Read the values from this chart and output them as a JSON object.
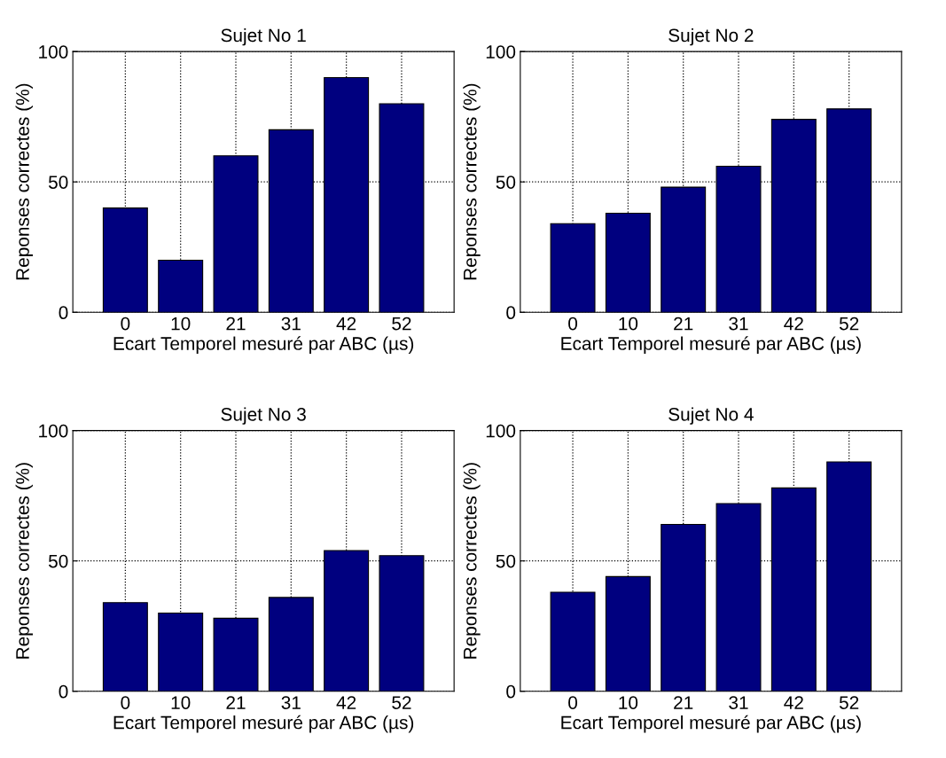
{
  "chart_data": [
    {
      "type": "bar",
      "title": "Sujet No 1",
      "xlabel": "Ecart Temporel mesuré par ABC (µs)",
      "ylabel": "Reponses correctes (%)",
      "categories": [
        "0",
        "10",
        "21",
        "31",
        "42",
        "52"
      ],
      "values": [
        40,
        20,
        60,
        70,
        90,
        80
      ],
      "color": "#00007f",
      "ylim": [
        0,
        100
      ],
      "yticks": [
        0,
        50,
        100
      ],
      "grid": true
    },
    {
      "type": "bar",
      "title": "Sujet No 2",
      "xlabel": "Ecart Temporel mesuré par ABC (µs)",
      "ylabel": "Reponses correctes (%)",
      "categories": [
        "0",
        "10",
        "21",
        "31",
        "42",
        "52"
      ],
      "values": [
        34,
        38,
        48,
        56,
        74,
        78
      ],
      "color": "#00007f",
      "ylim": [
        0,
        100
      ],
      "yticks": [
        0,
        50,
        100
      ],
      "grid": true
    },
    {
      "type": "bar",
      "title": "Sujet No 3",
      "xlabel": "Ecart Temporel mesuré par ABC (µs)",
      "ylabel": "Reponses correctes (%)",
      "categories": [
        "0",
        "10",
        "21",
        "31",
        "42",
        "52"
      ],
      "values": [
        34,
        30,
        28,
        36,
        54,
        52
      ],
      "color": "#00007f",
      "ylim": [
        0,
        100
      ],
      "yticks": [
        0,
        50,
        100
      ],
      "grid": true
    },
    {
      "type": "bar",
      "title": "Sujet No 4",
      "xlabel": "Ecart Temporel mesuré par ABC (µs)",
      "ylabel": "Reponses correctes (%)",
      "categories": [
        "0",
        "10",
        "21",
        "31",
        "42",
        "52"
      ],
      "values": [
        38,
        44,
        64,
        72,
        78,
        88
      ],
      "color": "#00007f",
      "ylim": [
        0,
        100
      ],
      "yticks": [
        0,
        50,
        100
      ],
      "grid": true
    }
  ]
}
